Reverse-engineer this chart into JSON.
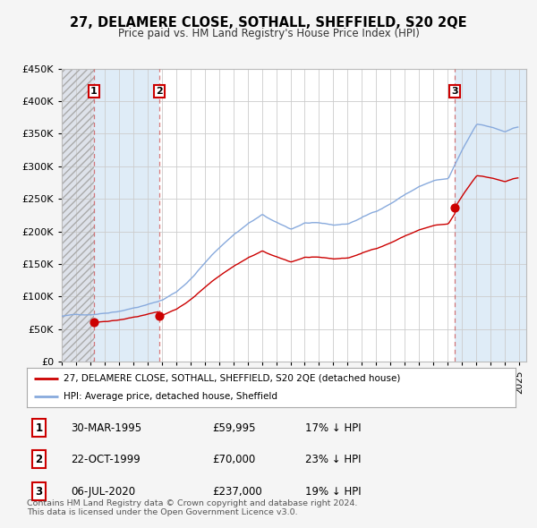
{
  "title": "27, DELAMERE CLOSE, SOTHALL, SHEFFIELD, S20 2QE",
  "subtitle": "Price paid vs. HM Land Registry's House Price Index (HPI)",
  "background_color": "#f5f5f5",
  "plot_bg_color": "#ffffff",
  "ownership_band_color": "#d8e8f5",
  "hatch_color": "#cccccc",
  "red_line_color": "#cc0000",
  "blue_line_color": "#88aadd",
  "sale_marker_color": "#cc0000",
  "transactions": [
    {
      "label": "1",
      "date_num": 1995.25,
      "price": 59995
    },
    {
      "label": "2",
      "date_num": 1999.81,
      "price": 70000
    },
    {
      "label": "3",
      "date_num": 2020.51,
      "price": 237000
    }
  ],
  "vline_dates": [
    1995.25,
    1999.81,
    2020.51
  ],
  "xmin": 1993.0,
  "xmax": 2025.5,
  "ymin": 0,
  "ymax": 450000,
  "yticks": [
    0,
    50000,
    100000,
    150000,
    200000,
    250000,
    300000,
    350000,
    400000,
    450000
  ],
  "ytick_labels": [
    "£0",
    "£50K",
    "£100K",
    "£150K",
    "£200K",
    "£250K",
    "£300K",
    "£350K",
    "£400K",
    "£450K"
  ],
  "legend_entries": [
    "27, DELAMERE CLOSE, SOTHALL, SHEFFIELD, S20 2QE (detached house)",
    "HPI: Average price, detached house, Sheffield"
  ],
  "table_rows": [
    {
      "num": "1",
      "date": "30-MAR-1995",
      "price": "£59,995",
      "note": "17% ↓ HPI"
    },
    {
      "num": "2",
      "date": "22-OCT-1999",
      "price": "£70,000",
      "note": "23% ↓ HPI"
    },
    {
      "num": "3",
      "date": "06-JUL-2020",
      "price": "£237,000",
      "note": "19% ↓ HPI"
    }
  ],
  "footer": "Contains HM Land Registry data © Crown copyright and database right 2024.\nThis data is licensed under the Open Government Licence v3.0."
}
